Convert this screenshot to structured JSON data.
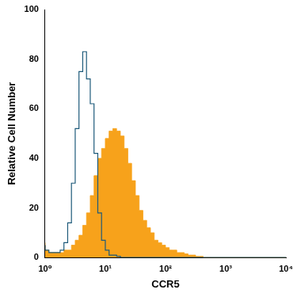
{
  "chart_data": {
    "type": "histogram",
    "x_label": "CCR5",
    "y_label": "Relative Cell Number",
    "log": "x",
    "grid": false,
    "bins": [
      1,
      1.155,
      1.334,
      1.54,
      1.778,
      2.054,
      2.371,
      2.738,
      3.162,
      3.652,
      4.217,
      4.87,
      5.623,
      6.494,
      7.499,
      8.66,
      10,
      11.55,
      13.34,
      15.4,
      17.78,
      20.54,
      23.71,
      27.38,
      31.62,
      36.52,
      42.17,
      48.7,
      56.23,
      64.94,
      74.99,
      86.6,
      100,
      115.5,
      133.4,
      154,
      177.8,
      205.4,
      237.1,
      273.8,
      316.2,
      365.2,
      421.7,
      487,
      562.3,
      649.4,
      749.9,
      866,
      1000,
      1155,
      1334,
      1540,
      1778,
      2054,
      2371,
      2738,
      3162,
      3652,
      4217,
      4870,
      5623,
      6494,
      7499,
      8660,
      10000
    ],
    "series": [
      {
        "type": "area",
        "color": "#f7a21b",
        "values": [
          6,
          3,
          2,
          2,
          2,
          2,
          3,
          3,
          5,
          7,
          9,
          13,
          18,
          25,
          33,
          40,
          44,
          48,
          51,
          52,
          51,
          49,
          44,
          38,
          31,
          25,
          19,
          15,
          12,
          10,
          7,
          6,
          5,
          4,
          3,
          3,
          2,
          2,
          1.5,
          1,
          1,
          0.5,
          0.5,
          0,
          0,
          0,
          0,
          0,
          0,
          0,
          0,
          0,
          0,
          0,
          0,
          0,
          0,
          0,
          0,
          0,
          0,
          0,
          0,
          0
        ]
      },
      {
        "type": "line",
        "color": "#1d5a7a",
        "values": [
          5,
          3,
          2,
          2,
          2,
          3,
          6,
          14,
          30,
          52,
          75,
          83,
          72,
          62,
          42,
          18,
          7,
          3,
          1,
          1,
          0.5,
          0,
          0,
          0,
          0,
          0,
          0,
          0,
          0,
          0,
          0,
          0,
          0,
          0,
          0,
          0,
          0,
          0,
          0,
          0,
          0,
          0,
          0,
          0,
          0,
          0,
          0,
          0,
          0,
          0,
          0,
          0,
          0,
          0,
          0,
          0,
          0,
          0,
          0,
          0,
          0,
          0,
          0,
          0
        ]
      }
    ],
    "xlim": [
      1,
      10000
    ],
    "xticks": [
      {
        "value": 1,
        "label": "10⁰"
      },
      {
        "value": 10,
        "label": "10¹"
      },
      {
        "value": 100,
        "label": "10²"
      },
      {
        "value": 1000,
        "label": "10³"
      },
      {
        "value": 10000,
        "label": "10⁴"
      }
    ],
    "ylim": [
      0,
      100
    ],
    "yticks": [
      0,
      20,
      40,
      60,
      80,
      100
    ]
  }
}
